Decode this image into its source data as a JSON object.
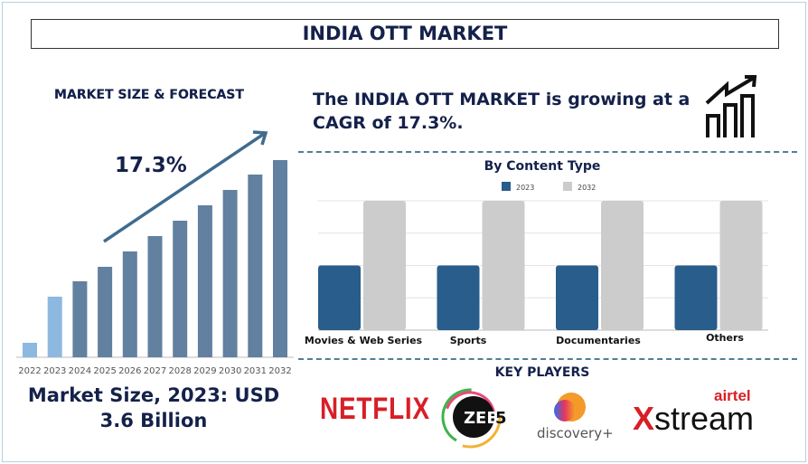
{
  "title": "INDIA OTT MARKET",
  "left_panel": {
    "heading": "MARKET SIZE & FORECAST",
    "cagr_label": "17.3%",
    "market_size_line1": "Market Size, 2023: USD",
    "market_size_line2": "3.6 Billion"
  },
  "headline": "The INDIA OTT MARKET is growing at a CAGR of 17.3%.",
  "key_players": {
    "heading": "KEY PLAYERS",
    "logos": [
      "NETFLIX",
      "ZEE5",
      "discovery+",
      "airtel xstream"
    ]
  },
  "colors": {
    "forecast_bar": "#62809f",
    "historic_bar": "#8db8e0",
    "series_2023": "#285d8c",
    "series_2032": "#cccccc",
    "text": "#14214a"
  },
  "icons": [
    "growth-chart-icon"
  ],
  "chart_data": [
    {
      "type": "bar",
      "title": "MARKET SIZE & FORECAST",
      "categories": [
        "2022",
        "2023",
        "2024",
        "2025",
        "2026",
        "2027",
        "2028",
        "2029",
        "2030",
        "2031",
        "2032"
      ],
      "values": [
        16,
        67,
        84,
        100,
        117,
        134,
        151,
        168,
        185,
        202,
        218
      ],
      "note_annotation": "17.3%",
      "grid": false
    },
    {
      "type": "bar",
      "title": "By Content Type",
      "categories": [
        "Movies & Web Series",
        "Sports",
        "Documentaries",
        "Others"
      ],
      "series": [
        {
          "name": "2023",
          "values": [
            0.5,
            0.5,
            0.5,
            0.5
          ]
        },
        {
          "name": "2032",
          "values": [
            1,
            1,
            1,
            1
          ]
        }
      ],
      "ylim": [
        0,
        1
      ],
      "grid": true,
      "legend": "top"
    }
  ]
}
